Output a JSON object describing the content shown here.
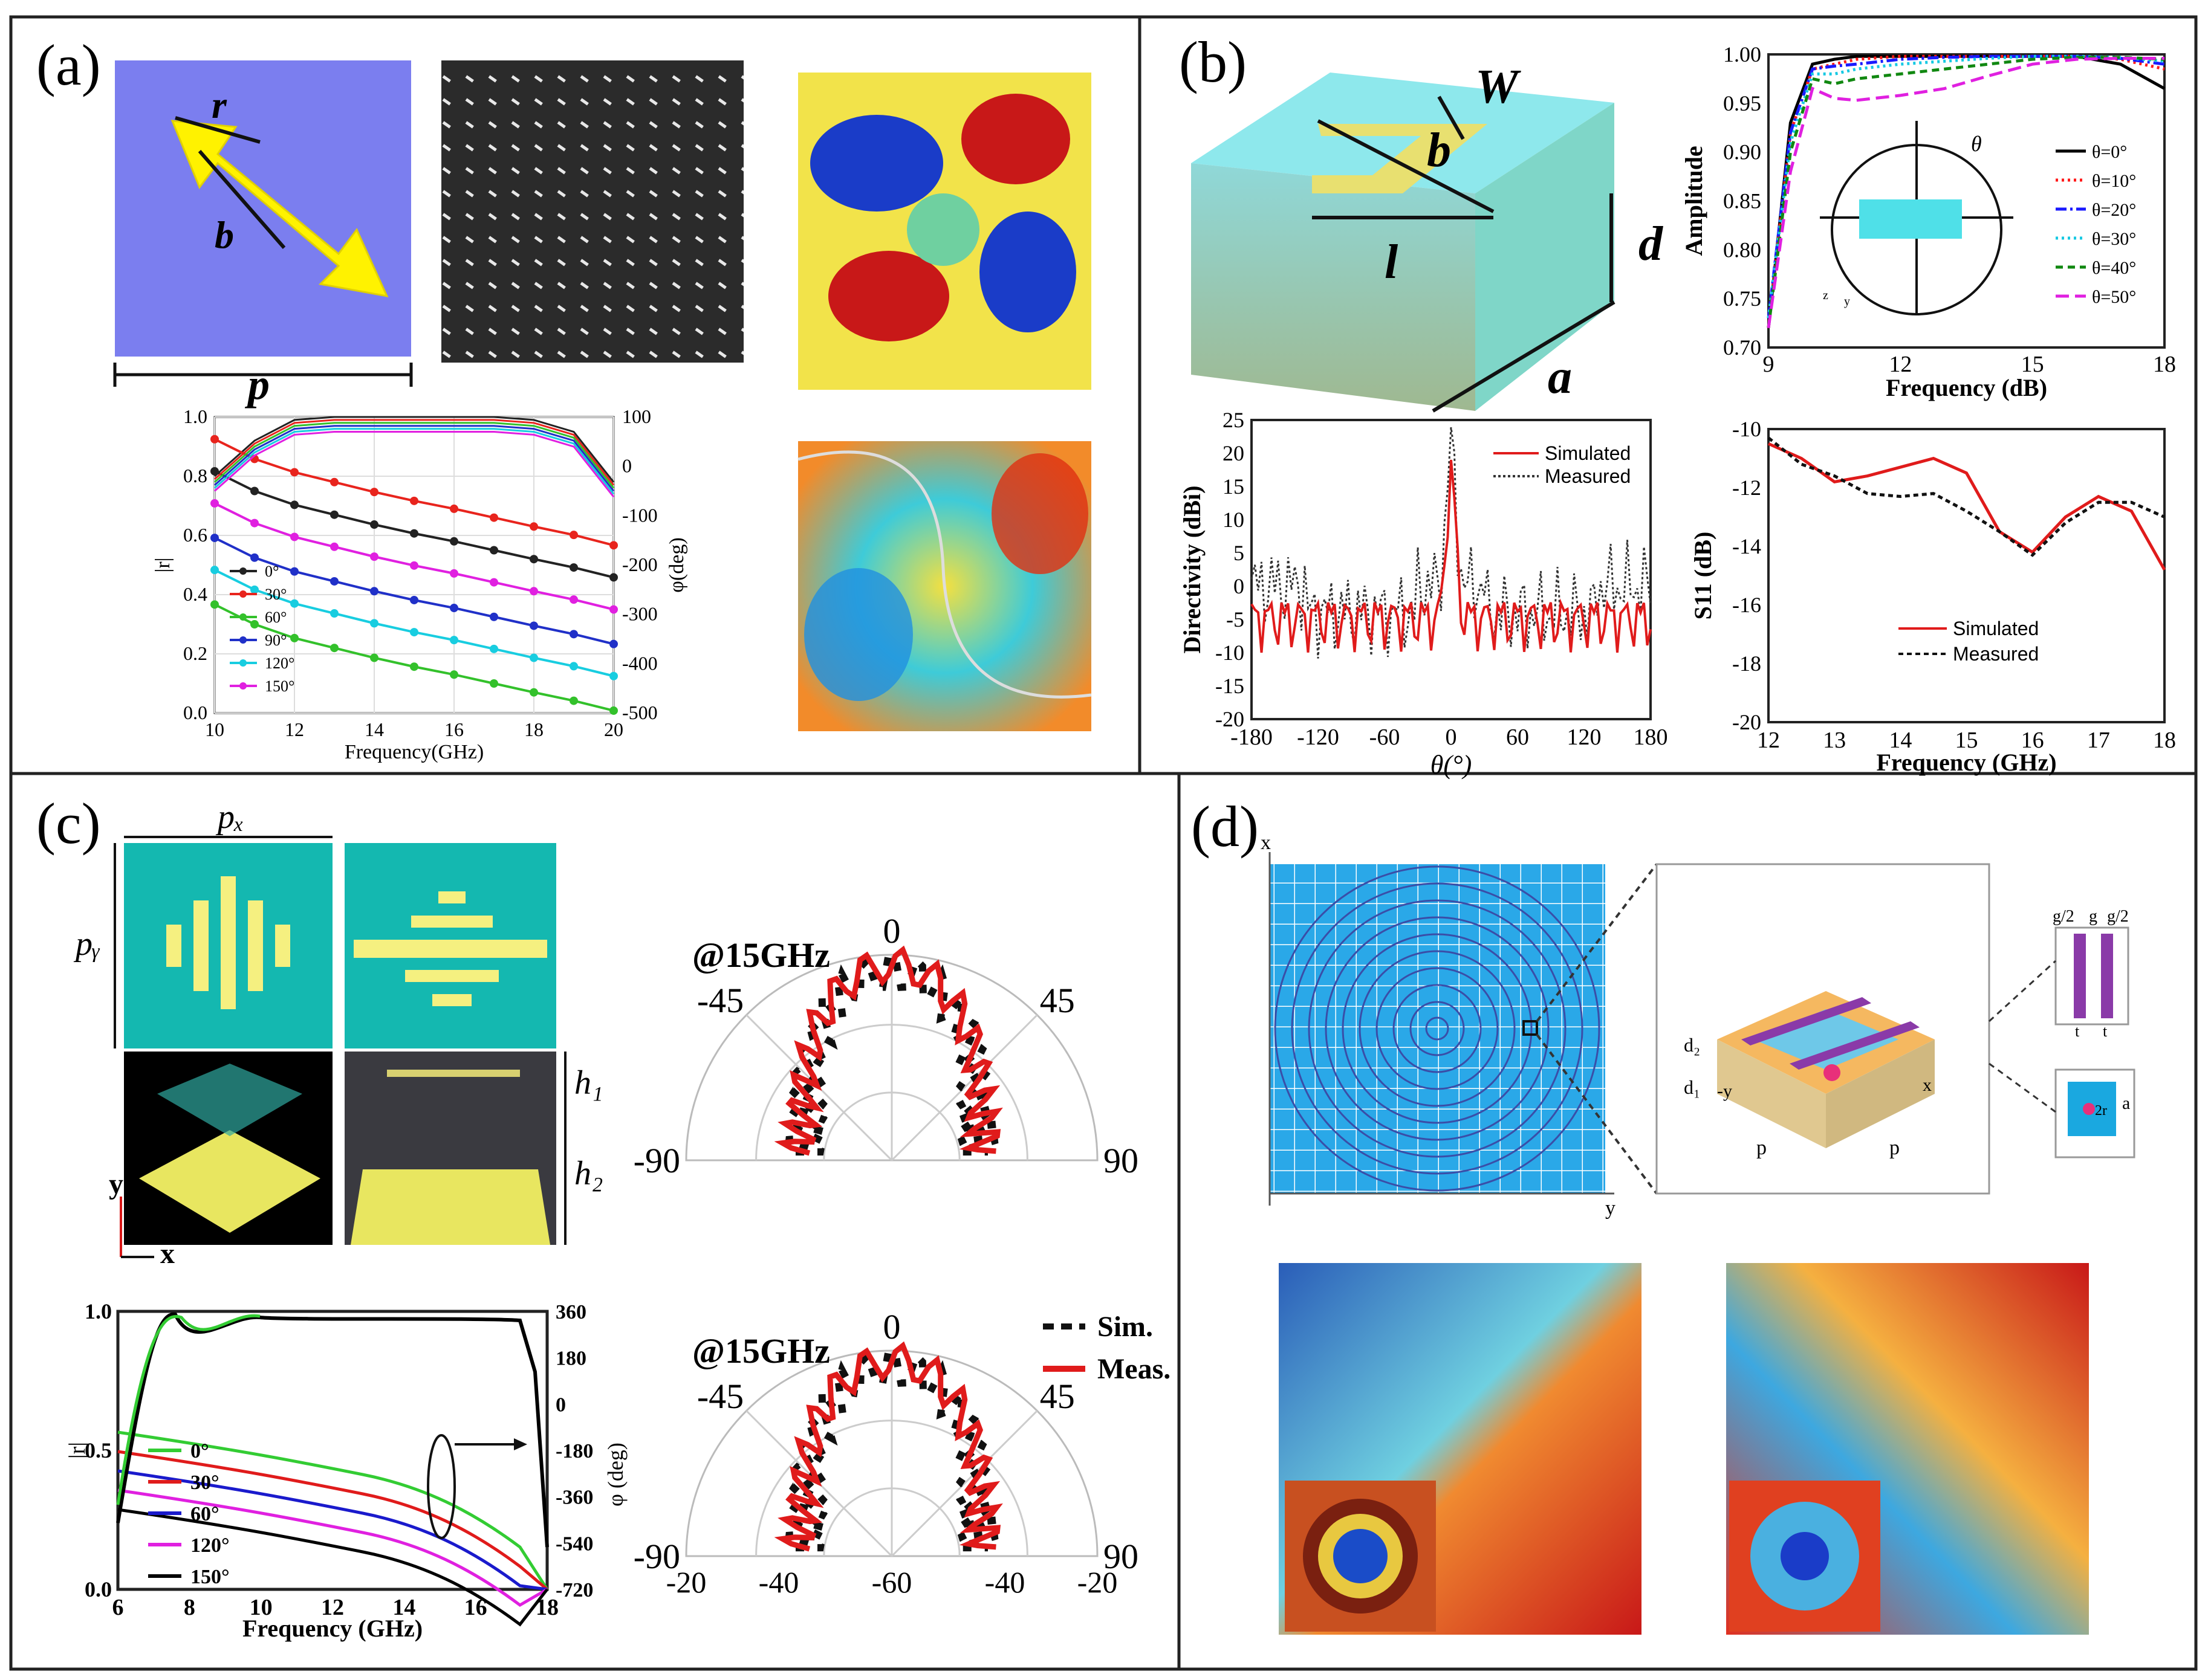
{
  "panel_labels": {
    "a": "(a)",
    "b": "(b)",
    "c": "(c)",
    "d": "(d)"
  },
  "a": {
    "unit_cell": {
      "r": "r",
      "b": "b",
      "p": "p"
    },
    "chart_data": {
      "type": "line",
      "xlabel": "Frequency(GHz)",
      "ylabel": "|r|",
      "y2label": "φ(deg)",
      "xlim": [
        10,
        20
      ],
      "ylim": [
        0,
        1.0
      ],
      "y2lim": [
        -500,
        100
      ],
      "xticks": [
        10,
        12,
        14,
        16,
        18,
        20
      ],
      "yticks": [
        "0.0",
        "0.2",
        "0.4",
        "0.6",
        "0.8",
        "1.0"
      ],
      "y2ticks": [
        "100",
        "0",
        "-100",
        "-200",
        "-300",
        "-400",
        "-500"
      ],
      "x": [
        10,
        11,
        12,
        13,
        14,
        15,
        16,
        17,
        18,
        19,
        20
      ],
      "amplitude": [
        0.8,
        0.92,
        0.99,
        1.0,
        1.0,
        1.0,
        1.0,
        1.0,
        0.99,
        0.95,
        0.78
      ],
      "series": [
        {
          "name": "0°",
          "color": "#222222",
          "phase": [
            -10,
            -50,
            -78,
            -98,
            -118,
            -136,
            -152,
            -170,
            -188,
            -205,
            -225
          ]
        },
        {
          "name": "30°",
          "color": "#e8241d",
          "phase": [
            55,
            15,
            -12,
            -32,
            -52,
            -70,
            -86,
            -104,
            -122,
            -139,
            -160
          ]
        },
        {
          "name": "60°",
          "color": "#33c12b",
          "phase": [
            -280,
            -320,
            -348,
            -368,
            -388,
            -406,
            -422,
            -440,
            -458,
            -475,
            -495
          ]
        },
        {
          "name": "90°",
          "color": "#2030c8",
          "phase": [
            -145,
            -185,
            -213,
            -233,
            -253,
            -271,
            -287,
            -305,
            -323,
            -340,
            -360
          ]
        },
        {
          "name": "120°",
          "color": "#18cde0",
          "phase": [
            -210,
            -250,
            -278,
            -298,
            -318,
            -336,
            -352,
            -370,
            -388,
            -405,
            -425
          ]
        },
        {
          "name": "150°",
          "color": "#e020e0",
          "phase": [
            -75,
            -115,
            -143,
            -163,
            -183,
            -201,
            -217,
            -235,
            -253,
            -270,
            -290
          ]
        }
      ]
    }
  },
  "b": {
    "unit_cell": {
      "W": "W",
      "b": "b",
      "l": "l",
      "d": "d",
      "a": "a"
    },
    "amplitude_chart": {
      "type": "line",
      "xlabel": "Frequency (dB)",
      "ylabel": "Amplitude",
      "xlim": [
        9,
        18
      ],
      "ylim": [
        0.7,
        1.0
      ],
      "xticks": [
        "9",
        "12",
        "15",
        "18"
      ],
      "yticks": [
        "0.70",
        "0.75",
        "0.80",
        "0.85",
        "0.90",
        "0.95",
        "1.00"
      ],
      "theta_symbol": "θ",
      "axis_z": "z",
      "axis_y": "y",
      "x": [
        9,
        9.5,
        10,
        10.5,
        11,
        12,
        13,
        14,
        15,
        16,
        17,
        18
      ],
      "series": [
        {
          "name": "θ=0°",
          "color": "#000000",
          "dash": "",
          "values": [
            0.72,
            0.93,
            0.99,
            0.995,
            0.998,
            0.998,
            0.998,
            0.998,
            0.998,
            0.998,
            0.99,
            0.965
          ]
        },
        {
          "name": "θ=10°",
          "color": "#ff1a1a",
          "dash": "4,6",
          "values": [
            0.72,
            0.92,
            0.985,
            0.99,
            0.995,
            0.998,
            0.998,
            0.998,
            0.998,
            0.998,
            0.995,
            0.985
          ]
        },
        {
          "name": "θ=20°",
          "color": "#1a1aff",
          "dash": "18,6,4,6",
          "values": [
            0.73,
            0.92,
            0.985,
            0.988,
            0.99,
            0.995,
            0.997,
            0.998,
            0.998,
            0.998,
            0.996,
            0.99
          ]
        },
        {
          "name": "θ=30°",
          "color": "#17c9e3",
          "dash": "4,6",
          "values": [
            0.73,
            0.91,
            0.98,
            0.98,
            0.985,
            0.99,
            0.993,
            0.996,
            0.998,
            0.998,
            0.997,
            0.993
          ]
        },
        {
          "name": "θ=40°",
          "color": "#118811",
          "dash": "12,8",
          "values": [
            0.72,
            0.9,
            0.975,
            0.97,
            0.975,
            0.98,
            0.985,
            0.99,
            0.995,
            0.997,
            0.997,
            0.995
          ]
        },
        {
          "name": "θ=50°",
          "color": "#e020e0",
          "dash": "22,10",
          "values": [
            0.72,
            0.88,
            0.965,
            0.955,
            0.953,
            0.958,
            0.965,
            0.978,
            0.99,
            0.995,
            0.996,
            0.996
          ]
        }
      ]
    },
    "directivity_chart": {
      "type": "line",
      "xlabel": "θ(°)",
      "ylabel": "Directivity (dBi)",
      "xlim": [
        -180,
        180
      ],
      "ylim": [
        -20,
        25
      ],
      "xticks": [
        "-180",
        "-120",
        "-60",
        "0",
        "60",
        "120",
        "180"
      ],
      "yticks": [
        "-20",
        "-15",
        "-10",
        "-5",
        "0",
        "5",
        "10",
        "15",
        "20",
        "25"
      ],
      "series": [
        {
          "name": "Simulated",
          "color": "#e01b1b",
          "dash": ""
        },
        {
          "name": "Measured",
          "color": "#333333",
          "dash": "4,4"
        }
      ]
    },
    "s11_chart": {
      "type": "line",
      "xlabel": "Frequency (GHz)",
      "ylabel": "S11 (dB)",
      "xlim": [
        12,
        18
      ],
      "ylim": [
        -20,
        -10
      ],
      "xticks": [
        "12",
        "13",
        "14",
        "15",
        "16",
        "17",
        "18"
      ],
      "yticks": [
        "-10",
        "-12",
        "-14",
        "-16",
        "-18",
        "-20"
      ],
      "x": [
        12,
        12.5,
        13,
        13.5,
        14,
        14.5,
        15,
        15.5,
        16,
        16.5,
        17,
        17.5,
        18
      ],
      "series": [
        {
          "name": "Simulated",
          "color": "#e01b1b",
          "dash": "",
          "values": [
            -10.5,
            -11,
            -11.8,
            -11.6,
            -11.3,
            -11,
            -11.5,
            -13.5,
            -14.2,
            -13,
            -12.3,
            -12.8,
            -14.8
          ]
        },
        {
          "name": "Measured",
          "color": "#111111",
          "dash": "8,6",
          "values": [
            -10.3,
            -11.2,
            -11.6,
            -12.2,
            -12.3,
            -12.2,
            -12.8,
            -13.5,
            -14.3,
            -13.2,
            -12.5,
            -12.5,
            -13
          ]
        }
      ]
    }
  },
  "c": {
    "cell_labels": {
      "px": "pₓ",
      "py": "pᵧ",
      "h1": "h₁",
      "h2": "h₂",
      "x": "x",
      "y": "y"
    },
    "chart_data": {
      "type": "line",
      "xlabel": "Frequency (GHz)",
      "ylabel": "|r|",
      "y2label": "φ (deg)",
      "xlim": [
        6,
        18
      ],
      "ylim": [
        0,
        1.0
      ],
      "y2lim": [
        -720,
        360
      ],
      "xticks": [
        "6",
        "8",
        "10",
        "12",
        "14",
        "16",
        "18"
      ],
      "yticks": [
        "0.0",
        "0.5",
        "1.0"
      ],
      "y2ticks": [
        "360",
        "180",
        "0",
        "-180",
        "-360",
        "-540",
        "-720"
      ],
      "series": [
        {
          "name": "0°",
          "color": "#33cc33"
        },
        {
          "name": "30°",
          "color": "#e01b1b"
        },
        {
          "name": "60°",
          "color": "#1a1acc"
        },
        {
          "name": "120°",
          "color": "#e020e0"
        },
        {
          "name": "150°",
          "color": "#000000"
        }
      ]
    },
    "polar_top": {
      "freq_label": "@15GHz",
      "angles": [
        "0",
        "-45",
        "45",
        "-90",
        "90"
      ]
    },
    "polar_bottom": {
      "freq_label": "@15GHz",
      "angles": [
        "0",
        "-45",
        "45",
        "-90",
        "90"
      ],
      "radial_ticks": [
        "-20",
        "-40",
        "-60",
        "-40",
        "-20"
      ],
      "legend": [
        "Sim.",
        "Meas."
      ]
    }
  },
  "d": {
    "cell_labels": {
      "d2": "d₂",
      "d1": "d₁",
      "p": "p",
      "x": "x",
      "y": "y",
      "neg_y": "-y",
      "g2": "g/2",
      "g": "g",
      "t": "t",
      "a": "a",
      "r": "2r"
    }
  }
}
